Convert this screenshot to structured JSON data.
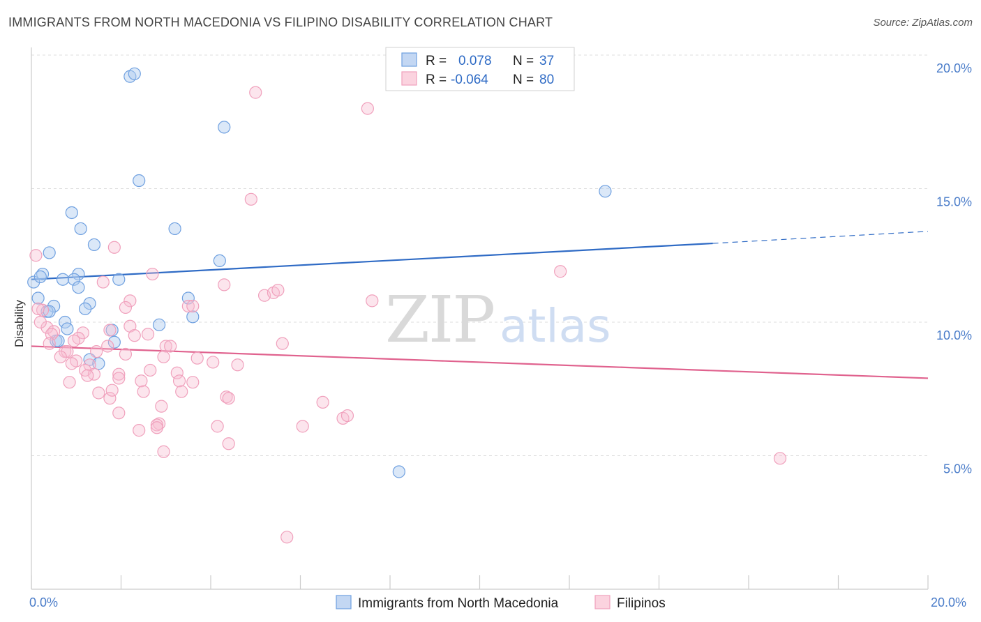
{
  "title": "IMMIGRANTS FROM NORTH MACEDONIA VS FILIPINO DISABILITY CORRELATION CHART",
  "source": "Source: ZipAtlas.com",
  "watermark": {
    "part1": "ZIP",
    "part2": "atlas"
  },
  "legend_box": {
    "rows": [
      {
        "r_label": "R =",
        "r_value": "0.078",
        "n_label": "N =",
        "n_value": "37"
      },
      {
        "r_label": "R =",
        "r_value": "-0.064",
        "n_label": "N =",
        "n_value": "80"
      }
    ]
  },
  "chart_data": {
    "type": "scatter",
    "title": "IMMIGRANTS FROM NORTH MACEDONIA VS FILIPINO DISABILITY CORRELATION CHART",
    "xlabel": "",
    "ylabel": "Disability",
    "xlim": [
      0,
      20
    ],
    "ylim": [
      0,
      20
    ],
    "x_tick_labels": [
      "0.0%",
      "20.0%"
    ],
    "y_ticks": [
      5,
      10,
      15,
      20
    ],
    "y_tick_labels": [
      "5.0%",
      "10.0%",
      "15.0%",
      "20.0%"
    ],
    "grid": "horizontal dashed",
    "legend_position": "bottom",
    "series": [
      {
        "name": "Immigrants from North Macedonia",
        "color": "#6fa0e0",
        "trend_color": "#2f6bc5",
        "R": 0.078,
        "N": 37,
        "trend": {
          "x0": 0,
          "y0": 11.6,
          "x1": 15.2,
          "y1": 12.95,
          "x_dash_end": 20,
          "y_dash_end": 13.4
        },
        "points": [
          [
            2.2,
            19.2
          ],
          [
            2.3,
            19.3
          ],
          [
            4.3,
            17.3
          ],
          [
            2.4,
            15.3
          ],
          [
            12.8,
            14.9
          ],
          [
            0.9,
            14.1
          ],
          [
            1.1,
            13.5
          ],
          [
            3.2,
            13.5
          ],
          [
            1.4,
            12.9
          ],
          [
            0.4,
            12.6
          ],
          [
            4.2,
            12.3
          ],
          [
            0.25,
            11.8
          ],
          [
            1.05,
            11.8
          ],
          [
            0.7,
            11.6
          ],
          [
            0.05,
            11.5
          ],
          [
            0.95,
            11.6
          ],
          [
            1.95,
            11.6
          ],
          [
            1.05,
            11.3
          ],
          [
            0.5,
            10.6
          ],
          [
            3.5,
            10.9
          ],
          [
            0.15,
            10.9
          ],
          [
            1.3,
            10.7
          ],
          [
            1.2,
            10.5
          ],
          [
            0.35,
            10.4
          ],
          [
            0.4,
            10.4
          ],
          [
            3.6,
            10.2
          ],
          [
            0.75,
            10.0
          ],
          [
            2.85,
            9.9
          ],
          [
            0.8,
            9.75
          ],
          [
            1.8,
            9.7
          ],
          [
            0.55,
            9.3
          ],
          [
            1.85,
            9.25
          ],
          [
            0.6,
            9.3
          ],
          [
            1.3,
            8.6
          ],
          [
            1.5,
            8.45
          ],
          [
            8.2,
            4.4
          ],
          [
            0.2,
            11.7
          ]
        ]
      },
      {
        "name": "Filipinos",
        "color": "#f0a0bc",
        "trend_color": "#e0628e",
        "R": -0.064,
        "N": 80,
        "trend": {
          "x0": 0,
          "y0": 9.1,
          "x1": 20,
          "y1": 7.9
        },
        "points": [
          [
            5.0,
            18.6
          ],
          [
            7.5,
            18.0
          ],
          [
            4.9,
            14.6
          ],
          [
            1.85,
            12.8
          ],
          [
            0.1,
            12.5
          ],
          [
            11.8,
            11.9
          ],
          [
            2.7,
            11.8
          ],
          [
            1.6,
            11.5
          ],
          [
            4.3,
            11.4
          ],
          [
            5.2,
            11.0
          ],
          [
            5.4,
            11.1
          ],
          [
            7.6,
            10.8
          ],
          [
            2.2,
            10.8
          ],
          [
            3.5,
            10.6
          ],
          [
            2.1,
            10.55
          ],
          [
            3.6,
            10.6
          ],
          [
            0.25,
            10.45
          ],
          [
            0.15,
            10.5
          ],
          [
            0.35,
            9.8
          ],
          [
            2.2,
            9.85
          ],
          [
            1.15,
            9.6
          ],
          [
            0.5,
            9.65
          ],
          [
            0.45,
            9.55
          ],
          [
            1.75,
            9.7
          ],
          [
            2.6,
            9.55
          ],
          [
            2.3,
            9.5
          ],
          [
            1.05,
            9.4
          ],
          [
            0.95,
            9.3
          ],
          [
            0.4,
            9.2
          ],
          [
            5.6,
            9.2
          ],
          [
            1.7,
            9.1
          ],
          [
            3.0,
            9.1
          ],
          [
            3.1,
            9.1
          ],
          [
            0.75,
            8.9
          ],
          [
            0.8,
            8.9
          ],
          [
            1.45,
            8.9
          ],
          [
            0.65,
            8.7
          ],
          [
            2.1,
            8.8
          ],
          [
            2.95,
            8.7
          ],
          [
            3.7,
            8.65
          ],
          [
            1.0,
            8.55
          ],
          [
            0.9,
            8.45
          ],
          [
            1.3,
            8.4
          ],
          [
            4.05,
            8.5
          ],
          [
            4.6,
            8.4
          ],
          [
            1.2,
            8.2
          ],
          [
            2.65,
            8.2
          ],
          [
            1.4,
            8.05
          ],
          [
            1.25,
            8.0
          ],
          [
            1.95,
            8.05
          ],
          [
            3.25,
            8.1
          ],
          [
            1.95,
            7.9
          ],
          [
            2.45,
            7.8
          ],
          [
            3.3,
            7.8
          ],
          [
            3.6,
            7.75
          ],
          [
            0.85,
            7.75
          ],
          [
            1.5,
            7.35
          ],
          [
            2.5,
            7.4
          ],
          [
            3.35,
            7.4
          ],
          [
            1.75,
            7.15
          ],
          [
            1.8,
            7.45
          ],
          [
            4.35,
            7.2
          ],
          [
            4.4,
            7.15
          ],
          [
            6.5,
            7.0
          ],
          [
            2.9,
            6.85
          ],
          [
            1.95,
            6.6
          ],
          [
            6.95,
            6.4
          ],
          [
            7.05,
            6.5
          ],
          [
            6.05,
            6.1
          ],
          [
            2.85,
            6.2
          ],
          [
            2.8,
            6.15
          ],
          [
            4.15,
            6.1
          ],
          [
            2.4,
            5.95
          ],
          [
            2.8,
            6.05
          ],
          [
            4.4,
            5.45
          ],
          [
            2.95,
            5.15
          ],
          [
            16.7,
            4.9
          ],
          [
            5.7,
            1.95
          ],
          [
            0.2,
            10.0
          ],
          [
            5.5,
            11.2
          ]
        ]
      }
    ]
  }
}
